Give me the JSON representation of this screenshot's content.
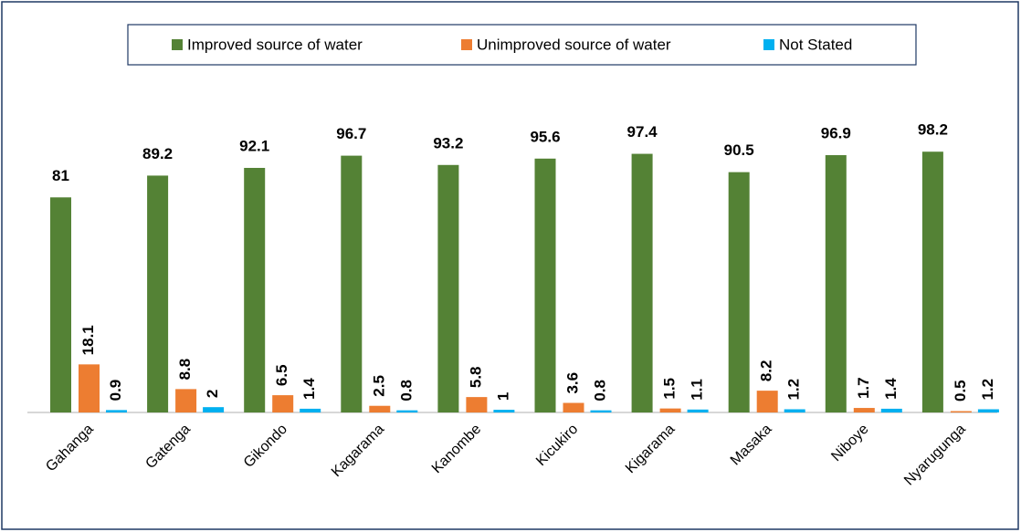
{
  "chart_data": {
    "type": "bar",
    "categories": [
      "Gahanga",
      "Gatenga",
      "Gikondo",
      "Kagarama",
      "Kanombe",
      "Kicukiro",
      "Kigarama",
      "Masaka",
      "Niboye",
      "Nyarugunga"
    ],
    "series": [
      {
        "name": "Improved source of water",
        "color": "#548235",
        "values": [
          81,
          89.2,
          92.1,
          96.7,
          93.2,
          95.6,
          97.4,
          90.5,
          96.9,
          98.2
        ]
      },
      {
        "name": "Unimproved source of water",
        "color": "#ed7d31",
        "values": [
          18.1,
          8.8,
          6.5,
          2.5,
          5.8,
          3.6,
          1.5,
          8.2,
          1.7,
          0.5
        ]
      },
      {
        "name": "Not Stated",
        "color": "#00b0f0",
        "values": [
          0.9,
          2,
          1.4,
          0.8,
          1,
          0.8,
          1.1,
          1.2,
          1.4,
          1.2
        ]
      }
    ],
    "ylim": [
      0,
      100
    ],
    "legend": "top"
  }
}
